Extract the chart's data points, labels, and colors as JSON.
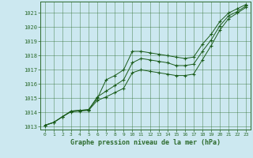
{
  "title": "Graphe pression niveau de la mer (hPa)",
  "background_color": "#cce8f0",
  "grid_color": "#2d6b2d",
  "line_color": "#1a5c1a",
  "marker_color": "#1a5c1a",
  "xlim": [
    -0.5,
    23.5
  ],
  "ylim": [
    1012.8,
    1021.8
  ],
  "xticks": [
    0,
    1,
    2,
    3,
    4,
    5,
    6,
    7,
    8,
    9,
    10,
    11,
    12,
    13,
    14,
    15,
    16,
    17,
    18,
    19,
    20,
    21,
    22,
    23
  ],
  "yticks": [
    1013,
    1014,
    1015,
    1016,
    1017,
    1018,
    1019,
    1020,
    1021
  ],
  "series": [
    [
      1013.1,
      1013.3,
      1013.7,
      1014.1,
      1014.15,
      1014.2,
      1015.0,
      1016.3,
      1016.6,
      1017.0,
      1018.3,
      1018.3,
      1018.2,
      1018.1,
      1018.0,
      1017.9,
      1017.8,
      1017.9,
      1018.8,
      1019.5,
      1020.4,
      1021.0,
      1021.3,
      1021.6
    ],
    [
      1013.1,
      1013.3,
      1013.7,
      1014.1,
      1014.15,
      1014.2,
      1015.1,
      1015.5,
      1015.9,
      1016.3,
      1017.5,
      1017.8,
      1017.7,
      1017.6,
      1017.5,
      1017.3,
      1017.3,
      1017.4,
      1018.3,
      1019.1,
      1020.1,
      1020.8,
      1021.1,
      1021.5
    ],
    [
      1013.1,
      1013.3,
      1013.7,
      1014.05,
      1014.1,
      1014.15,
      1014.85,
      1015.1,
      1015.4,
      1015.7,
      1016.8,
      1017.0,
      1016.9,
      1016.8,
      1016.7,
      1016.6,
      1016.6,
      1016.7,
      1017.7,
      1018.7,
      1019.8,
      1020.6,
      1021.0,
      1021.4
    ]
  ]
}
